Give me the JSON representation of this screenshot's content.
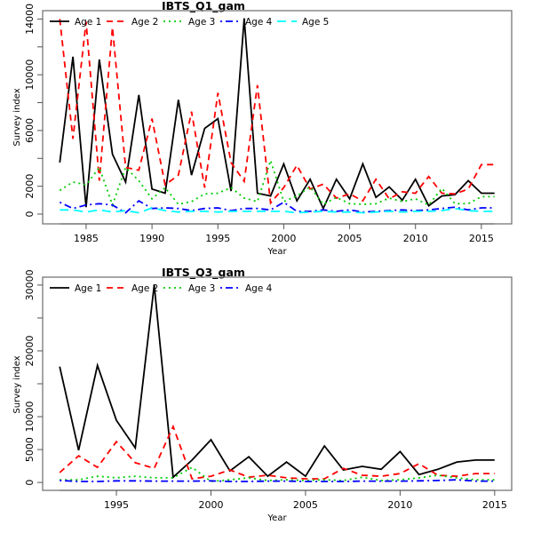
{
  "chart_data": [
    {
      "type": "line",
      "title": "IBTS_Q1_gam",
      "xlabel": "Year",
      "ylabel": "Survey index",
      "xlim": [
        1982.4,
        1996.6
      ],
      "xlim_note": "see x_range",
      "x_range": [
        1981.7,
        2017.3
      ],
      "ylim": [
        -700,
        14600
      ],
      "x_ticks": [
        1985,
        1990,
        1995,
        2000,
        2005,
        2010,
        2015
      ],
      "x_tick_labels": [
        "1985",
        "1990",
        "1995",
        "2000",
        "2005",
        "2010",
        "2015"
      ],
      "y_ticks": [
        0,
        2000,
        4000,
        6000,
        8000,
        10000,
        12000,
        14000
      ],
      "y_tick_labels": [
        "0",
        "2000",
        "",
        "6000",
        "",
        "10000",
        "",
        "14000"
      ],
      "legend_position": "top",
      "grid": false,
      "x": [
        1983,
        1984,
        1985,
        1986,
        1987,
        1988,
        1989,
        1990,
        1991,
        1992,
        1993,
        1994,
        1995,
        1996,
        1997,
        1998,
        1999,
        2000,
        2001,
        2002,
        2003,
        2004,
        2005,
        2006,
        2007,
        2008,
        2009,
        2010,
        2011,
        2012,
        2013,
        2014,
        2015,
        2016
      ],
      "series": [
        {
          "name": "Age 1",
          "color": "#000000",
          "dash": "solid",
          "values": [
            3700,
            11300,
            500,
            11100,
            4300,
            2300,
            8550,
            1800,
            1500,
            8200,
            2800,
            6150,
            6850,
            1650,
            14050,
            1500,
            1300,
            3600,
            950,
            2500,
            400,
            2500,
            1100,
            3600,
            1200,
            1950,
            1000,
            2500,
            600,
            1300,
            1400,
            2400,
            1500,
            1500
          ]
        },
        {
          "name": "Age 2",
          "color": "#ff0000",
          "dash": "dashed",
          "values": [
            14000,
            5400,
            13800,
            2400,
            13400,
            3350,
            3150,
            6850,
            2100,
            2800,
            7350,
            1900,
            8700,
            3700,
            2350,
            9250,
            800,
            1900,
            3500,
            1800,
            2150,
            1150,
            1450,
            950,
            2500,
            1100,
            1600,
            1500,
            2700,
            1500,
            1450,
            1800,
            3550,
            3550
          ]
        },
        {
          "name": "Age 3",
          "color": "#00cd00",
          "dash": "dotted",
          "values": [
            1700,
            2300,
            2100,
            3350,
            650,
            3350,
            2400,
            1100,
            1900,
            700,
            900,
            1450,
            1500,
            1900,
            1150,
            900,
            3850,
            900,
            1300,
            1950,
            700,
            1200,
            750,
            700,
            750,
            1150,
            900,
            1100,
            650,
            1850,
            750,
            750,
            1250,
            1250
          ]
        },
        {
          "name": "Age 4",
          "color": "#0000ff",
          "dash": "dotdash",
          "values": [
            850,
            400,
            650,
            750,
            650,
            100,
            950,
            400,
            450,
            400,
            250,
            400,
            450,
            250,
            400,
            400,
            300,
            850,
            200,
            200,
            300,
            200,
            300,
            150,
            200,
            250,
            300,
            250,
            300,
            400,
            500,
            300,
            450,
            450
          ]
        },
        {
          "name": "Age 5",
          "color": "#00ffff",
          "dash": "longdash",
          "values": [
            300,
            300,
            150,
            300,
            150,
            250,
            100,
            450,
            250,
            150,
            200,
            200,
            150,
            200,
            200,
            200,
            200,
            200,
            100,
            150,
            200,
            150,
            150,
            100,
            150,
            200,
            150,
            200,
            200,
            250,
            400,
            250,
            200,
            200
          ]
        }
      ]
    },
    {
      "type": "line",
      "title": "IBTS_Q3_gam",
      "xlabel": "Year",
      "ylabel": "Survey index",
      "x_range": [
        1991.1,
        2015.9
      ],
      "ylim": [
        -1200,
        31200
      ],
      "x_ticks": [
        1995,
        2000,
        2005,
        2010,
        2015
      ],
      "x_tick_labels": [
        "1995",
        "2000",
        "2005",
        "2010",
        "2015"
      ],
      "y_ticks": [
        0,
        5000,
        10000,
        15000,
        20000,
        25000,
        30000
      ],
      "y_tick_labels": [
        "0",
        "5000",
        "10000",
        "",
        "20000",
        "",
        "30000"
      ],
      "legend_position": "top",
      "grid": false,
      "x": [
        1992,
        1993,
        1994,
        1995,
        1996,
        1997,
        1998,
        1999,
        2000,
        2001,
        2002,
        2003,
        2004,
        2005,
        2006,
        2007,
        2008,
        2009,
        2010,
        2011,
        2012,
        2013,
        2014,
        2015
      ],
      "series": [
        {
          "name": "Age 1",
          "color": "#000000",
          "dash": "solid",
          "values": [
            17600,
            4900,
            17800,
            9450,
            5250,
            30000,
            800,
            3400,
            6500,
            1750,
            3900,
            950,
            3100,
            950,
            5550,
            1900,
            2450,
            2000,
            4700,
            1200,
            2000,
            3100,
            3400,
            3400
          ]
        },
        {
          "name": "Age 2",
          "color": "#ff0000",
          "dash": "dashed",
          "values": [
            1500,
            4050,
            2300,
            6200,
            3000,
            2150,
            8500,
            550,
            950,
            1900,
            800,
            1100,
            700,
            550,
            550,
            2150,
            1100,
            950,
            1350,
            2850,
            1100,
            950,
            1350,
            1350
          ]
        },
        {
          "name": "Age 3",
          "color": "#00cd00",
          "dash": "dotted",
          "values": [
            400,
            400,
            950,
            700,
            950,
            700,
            700,
            2300,
            150,
            400,
            700,
            300,
            400,
            300,
            400,
            300,
            800,
            300,
            400,
            700,
            1100,
            700,
            400,
            400
          ]
        },
        {
          "name": "Age 4",
          "color": "#0000ff",
          "dash": "dotdash",
          "values": [
            300,
            150,
            150,
            250,
            250,
            200,
            200,
            200,
            250,
            150,
            150,
            200,
            200,
            150,
            150,
            150,
            200,
            200,
            200,
            250,
            300,
            400,
            200,
            200
          ]
        }
      ]
    }
  ]
}
